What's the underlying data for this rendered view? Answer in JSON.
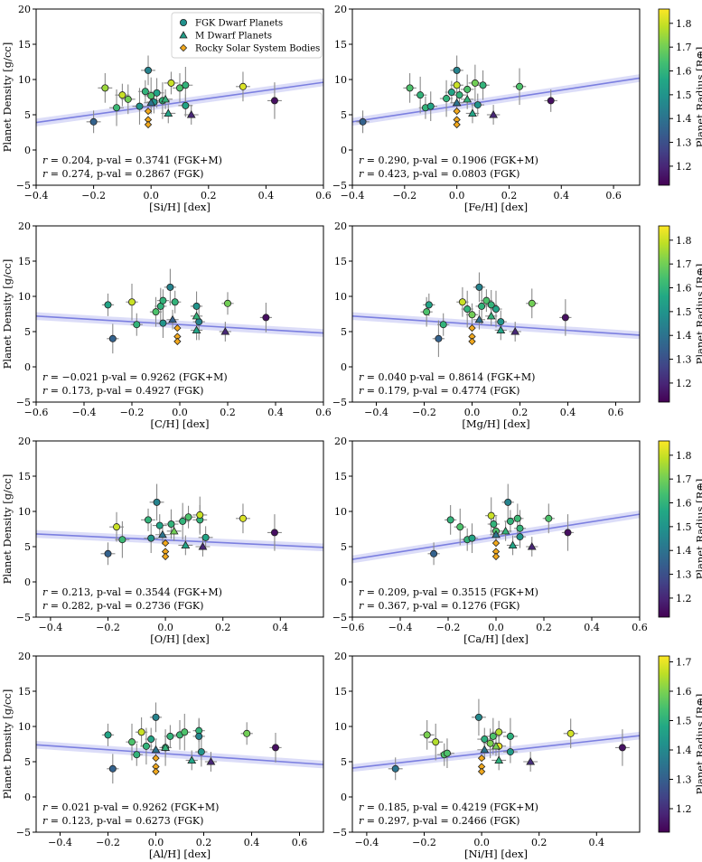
{
  "chart_data": [
    {
      "type": "scatter",
      "xlabel": "[Si/H] [dex]",
      "ylabel": "Planet Density [g/cc]",
      "xlim": [
        -0.4,
        0.6
      ],
      "ylim": [
        -5,
        20
      ],
      "xticks": [
        "−0.4",
        "−0.2",
        "0.0",
        "0.2",
        "0.4",
        "0.6"
      ],
      "yticks": [
        "−5",
        "0",
        "5",
        "10",
        "15",
        "20"
      ],
      "fit_line": [
        [
          -0.4,
          3.9
        ],
        [
          0.6,
          9.6
        ]
      ],
      "annotation": [
        "r = 0.204, p-val = 0.3741 (FGK+M)",
        "r = 0.274, p-val = 0.2867 (FGK)"
      ],
      "fgk": [
        [
          -0.2,
          4.0,
          1.35
        ],
        [
          -0.16,
          8.8,
          1.75
        ],
        [
          -0.12,
          6.0,
          1.62
        ],
        [
          -0.1,
          7.8,
          1.8
        ],
        [
          -0.08,
          7.2,
          1.7
        ],
        [
          -0.04,
          6.2,
          1.5
        ],
        [
          -0.02,
          8.3,
          1.6
        ],
        [
          -0.01,
          11.3,
          1.45
        ],
        [
          0.0,
          7.7,
          1.65
        ],
        [
          0.01,
          6.8,
          1.5
        ],
        [
          0.02,
          8.1,
          1.55
        ],
        [
          0.04,
          7.0,
          1.6
        ],
        [
          0.07,
          9.5,
          1.8
        ],
        [
          0.1,
          8.8,
          1.65
        ],
        [
          0.12,
          9.2,
          1.6
        ],
        [
          0.12,
          6.3,
          1.55
        ],
        [
          0.32,
          9.0,
          1.82
        ],
        [
          0.43,
          7.0,
          1.15
        ]
      ],
      "m": [
        [
          0.0,
          6.7,
          1.4
        ],
        [
          0.05,
          7.2,
          1.6
        ],
        [
          0.06,
          5.2,
          1.55
        ],
        [
          0.14,
          5.0,
          1.2
        ]
      ],
      "rocky": [
        [
          -0.01,
          5.5
        ],
        [
          -0.01,
          4.3
        ],
        [
          -0.01,
          3.6
        ]
      ],
      "colorbar": {
        "label": "Planet Radius [R⊕]",
        "ticks": [
          "1.2",
          "1.3",
          "1.4",
          "1.5",
          "1.6",
          "1.7",
          "1.8"
        ],
        "min": 1.12,
        "max": 1.86
      }
    },
    {
      "type": "scatter",
      "xlabel": "[Fe/H] [dex]",
      "ylabel": "",
      "xlim": [
        -0.4,
        0.7
      ],
      "ylim": [
        -5,
        20
      ],
      "xticks": [
        "−0.4",
        "−0.2",
        "0.0",
        "0.2",
        "0.4",
        "0.6"
      ],
      "yticks": [
        "−5",
        "0",
        "5",
        "10",
        "15",
        "20"
      ],
      "fit_line": [
        [
          -0.4,
          4.0
        ],
        [
          0.7,
          10.2
        ]
      ],
      "annotation": [
        "r = 0.290, p-val = 0.1906 (FGK+M)",
        "r = 0.423, p-val = 0.0803 (FGK)"
      ],
      "fgk": [
        [
          -0.36,
          4.0,
          1.35
        ],
        [
          -0.18,
          8.8,
          1.65
        ],
        [
          -0.14,
          7.8,
          1.6
        ],
        [
          -0.12,
          6.0,
          1.6
        ],
        [
          -0.1,
          6.2,
          1.55
        ],
        [
          -0.04,
          7.3,
          1.6
        ],
        [
          -0.02,
          8.2,
          1.55
        ],
        [
          0.0,
          11.3,
          1.45
        ],
        [
          0.0,
          9.2,
          1.8
        ],
        [
          0.01,
          7.8,
          1.6
        ],
        [
          0.04,
          8.6,
          1.65
        ],
        [
          0.07,
          9.5,
          1.7
        ],
        [
          0.08,
          6.4,
          1.5
        ],
        [
          0.1,
          9.2,
          1.6
        ],
        [
          0.24,
          9.0,
          1.65
        ],
        [
          0.36,
          7.0,
          1.15
        ]
      ],
      "m": [
        [
          0.0,
          6.7,
          1.4
        ],
        [
          0.04,
          7.2,
          1.6
        ],
        [
          0.06,
          5.2,
          1.55
        ],
        [
          0.14,
          5.0,
          1.2
        ]
      ],
      "rocky": [
        [
          0.0,
          5.5
        ],
        [
          0.0,
          4.3
        ],
        [
          0.0,
          3.6
        ]
      ],
      "colorbar": {
        "label": "Planet Radius [R⊕]",
        "ticks": [
          "1.2",
          "1.3",
          "1.4",
          "1.5",
          "1.6",
          "1.7",
          "1.8"
        ],
        "min": 1.12,
        "max": 1.86
      }
    },
    {
      "type": "scatter",
      "xlabel": "[C/H] [dex]",
      "ylabel": "Planet Density [g/cc]",
      "xlim": [
        -0.6,
        0.6
      ],
      "ylim": [
        -5,
        20
      ],
      "xticks": [
        "−0.6",
        "−0.4",
        "−0.2",
        "0.0",
        "0.2",
        "0.4",
        "0.6"
      ],
      "yticks": [
        "−5",
        "0",
        "5",
        "10",
        "15",
        "20"
      ],
      "fit_line": [
        [
          -0.6,
          7.2
        ],
        [
          0.6,
          4.8
        ]
      ],
      "annotation": [
        "r = −0.021 p-val = 0.9262 (FGK+M)",
        "r = 0.173, p-val = 0.4927 (FGK)"
      ],
      "fgk": [
        [
          -0.3,
          8.8,
          1.55
        ],
        [
          -0.28,
          4.0,
          1.35
        ],
        [
          -0.2,
          9.2,
          1.8
        ],
        [
          -0.18,
          6.0,
          1.6
        ],
        [
          -0.1,
          7.8,
          1.65
        ],
        [
          -0.08,
          8.6,
          1.6
        ],
        [
          -0.07,
          9.4,
          1.6
        ],
        [
          -0.07,
          6.2,
          1.5
        ],
        [
          -0.04,
          11.3,
          1.45
        ],
        [
          -0.02,
          9.2,
          1.6
        ],
        [
          0.07,
          8.6,
          1.5
        ],
        [
          0.08,
          6.4,
          1.45
        ],
        [
          0.2,
          9.0,
          1.7
        ],
        [
          0.36,
          7.0,
          1.15
        ]
      ],
      "m": [
        [
          -0.03,
          6.7,
          1.35
        ],
        [
          0.07,
          7.2,
          1.6
        ],
        [
          0.07,
          5.2,
          1.55
        ],
        [
          0.19,
          5.0,
          1.2
        ]
      ],
      "rocky": [
        [
          -0.01,
          5.5
        ],
        [
          -0.01,
          4.3
        ],
        [
          -0.01,
          3.6
        ]
      ],
      "colorbar": {
        "label": "Planet Radius [R⊕]",
        "ticks": [
          "1.2",
          "1.3",
          "1.4",
          "1.5",
          "1.6",
          "1.7",
          "1.8"
        ],
        "min": 1.12,
        "max": 1.86
      }
    },
    {
      "type": "scatter",
      "xlabel": "[Mg/H] [dex]",
      "ylabel": "",
      "xlim": [
        -0.5,
        0.7
      ],
      "ylim": [
        -5,
        20
      ],
      "xticks": [
        "−0.4",
        "−0.2",
        "0.0",
        "0.2",
        "0.4",
        "0.6"
      ],
      "yticks": [
        "−5",
        "0",
        "5",
        "10",
        "15",
        "20"
      ],
      "fit_line": [
        [
          -0.5,
          7.2
        ],
        [
          0.7,
          4.5
        ]
      ],
      "annotation": [
        "r = 0.040 p-val = 0.8614 (FGK+M)",
        "r = 0.179, p-val = 0.4774 (FGK)"
      ],
      "fgk": [
        [
          -0.18,
          8.8,
          1.55
        ],
        [
          -0.19,
          7.8,
          1.65
        ],
        [
          -0.14,
          4.0,
          1.35
        ],
        [
          -0.12,
          6.0,
          1.6
        ],
        [
          -0.04,
          9.2,
          1.8
        ],
        [
          -0.02,
          8.2,
          1.6
        ],
        [
          0.0,
          7.4,
          1.7
        ],
        [
          0.03,
          11.3,
          1.45
        ],
        [
          0.04,
          8.6,
          1.6
        ],
        [
          0.06,
          9.4,
          1.65
        ],
        [
          0.08,
          8.8,
          1.6
        ],
        [
          0.1,
          8.2,
          1.55
        ],
        [
          0.12,
          6.4,
          1.5
        ],
        [
          0.25,
          9.0,
          1.7
        ],
        [
          0.39,
          7.0,
          1.15
        ]
      ],
      "m": [
        [
          0.03,
          6.7,
          1.4
        ],
        [
          0.08,
          7.2,
          1.6
        ],
        [
          0.12,
          5.2,
          1.55
        ],
        [
          0.18,
          5.0,
          1.2
        ]
      ],
      "rocky": [
        [
          0.0,
          5.5
        ],
        [
          0.0,
          4.3
        ],
        [
          0.0,
          3.6
        ]
      ],
      "colorbar": {
        "label": "Planet Radius [R⊕]",
        "ticks": [
          "1.2",
          "1.3",
          "1.4",
          "1.5",
          "1.6",
          "1.7",
          "1.8"
        ],
        "min": 1.12,
        "max": 1.86
      }
    },
    {
      "type": "scatter",
      "xlabel": "[O/H] [dex]",
      "ylabel": "Planet Density [g/cc]",
      "xlim": [
        -0.45,
        0.55
      ],
      "ylim": [
        -5,
        20
      ],
      "xticks": [
        "−0.4",
        "−0.2",
        "0.0",
        "0.2",
        "0.4"
      ],
      "yticks": [
        "−5",
        "0",
        "5",
        "10",
        "15",
        "20"
      ],
      "fit_line": [
        [
          -0.45,
          6.8
        ],
        [
          0.55,
          4.9
        ]
      ],
      "annotation": [
        "r = 0.213, p-val = 0.3544 (FGK+M)",
        "r = 0.282, p-val = 0.2736 (FGK)"
      ],
      "fgk": [
        [
          -0.2,
          4.0,
          1.35
        ],
        [
          -0.17,
          7.8,
          1.8
        ],
        [
          -0.15,
          6.0,
          1.62
        ],
        [
          -0.06,
          8.8,
          1.6
        ],
        [
          -0.05,
          6.2,
          1.5
        ],
        [
          -0.03,
          11.3,
          1.45
        ],
        [
          -0.02,
          8.0,
          1.55
        ],
        [
          0.02,
          8.2,
          1.6
        ],
        [
          0.06,
          8.6,
          1.6
        ],
        [
          0.08,
          9.2,
          1.65
        ],
        [
          0.12,
          8.8,
          1.6
        ],
        [
          0.12,
          9.5,
          1.8
        ],
        [
          0.14,
          6.3,
          1.55
        ],
        [
          0.27,
          9.0,
          1.82
        ],
        [
          0.38,
          7.0,
          1.15
        ]
      ],
      "m": [
        [
          -0.01,
          6.7,
          1.4
        ],
        [
          0.03,
          7.2,
          1.7
        ],
        [
          0.07,
          5.2,
          1.55
        ],
        [
          0.13,
          5.0,
          1.2
        ]
      ],
      "rocky": [
        [
          0.0,
          5.5
        ],
        [
          0.0,
          4.3
        ],
        [
          0.0,
          3.6
        ]
      ],
      "colorbar": {
        "label": "Planet Radius [R⊕]",
        "ticks": [
          "1.2",
          "1.3",
          "1.4",
          "1.5",
          "1.6",
          "1.7",
          "1.8"
        ],
        "min": 1.12,
        "max": 1.86
      }
    },
    {
      "type": "scatter",
      "xlabel": "[Ca/H] [dex]",
      "ylabel": "",
      "xlim": [
        -0.6,
        0.6
      ],
      "ylim": [
        -5,
        20
      ],
      "xticks": [
        "−0.6",
        "−0.4",
        "−0.2",
        "0.0",
        "0.2",
        "0.4",
        "0.6"
      ],
      "yticks": [
        "−5",
        "0",
        "5",
        "10",
        "15",
        "20"
      ],
      "fit_line": [
        [
          -0.6,
          3.2
        ],
        [
          0.6,
          9.6
        ]
      ],
      "annotation": [
        "r = 0.209, p-val = 0.3515 (FGK+M)",
        "r = 0.367, p-val = 0.1276 (FGK)"
      ],
      "fgk": [
        [
          -0.26,
          4.0,
          1.35
        ],
        [
          -0.19,
          8.8,
          1.6
        ],
        [
          -0.15,
          7.8,
          1.65
        ],
        [
          -0.12,
          6.0,
          1.6
        ],
        [
          -0.1,
          6.2,
          1.55
        ],
        [
          -0.02,
          9.4,
          1.8
        ],
        [
          -0.01,
          8.2,
          1.6
        ],
        [
          0.0,
          7.2,
          1.65
        ],
        [
          0.05,
          11.3,
          1.45
        ],
        [
          0.06,
          8.6,
          1.6
        ],
        [
          0.09,
          9.0,
          1.62
        ],
        [
          0.1,
          7.6,
          1.6
        ],
        [
          0.1,
          6.4,
          1.5
        ],
        [
          0.22,
          9.0,
          1.65
        ],
        [
          0.3,
          7.0,
          1.15
        ]
      ],
      "m": [
        [
          0.0,
          6.7,
          1.4
        ],
        [
          0.04,
          7.2,
          1.6
        ],
        [
          0.07,
          5.2,
          1.55
        ],
        [
          0.15,
          5.0,
          1.2
        ]
      ],
      "rocky": [
        [
          0.0,
          5.5
        ],
        [
          0.0,
          4.3
        ],
        [
          0.0,
          3.6
        ]
      ],
      "colorbar": {
        "label": "Planet Radius [R⊕]",
        "ticks": [
          "1.2",
          "1.3",
          "1.4",
          "1.5",
          "1.6",
          "1.7",
          "1.8"
        ],
        "min": 1.12,
        "max": 1.86
      }
    },
    {
      "type": "scatter",
      "xlabel": "[Al/H] [dex]",
      "ylabel": "Planet Density [g/cc]",
      "xlim": [
        -0.5,
        0.7
      ],
      "ylim": [
        -5,
        20
      ],
      "xticks": [
        "−0.4",
        "−0.2",
        "0.0",
        "0.2",
        "0.4",
        "0.6"
      ],
      "yticks": [
        "−5",
        "0",
        "5",
        "10",
        "15",
        "20"
      ],
      "fit_line": [
        [
          -0.5,
          7.4
        ],
        [
          0.7,
          4.6
        ]
      ],
      "annotation": [
        "r = 0.021 p-val = 0.9262 (FGK+M)",
        "r = 0.123, p-val = 0.6273 (FGK)"
      ],
      "fgk": [
        [
          -0.2,
          8.8,
          1.55
        ],
        [
          -0.18,
          4.0,
          1.35
        ],
        [
          -0.1,
          7.8,
          1.65
        ],
        [
          -0.08,
          6.0,
          1.6
        ],
        [
          -0.06,
          9.2,
          1.8
        ],
        [
          -0.04,
          7.2,
          1.6
        ],
        [
          -0.02,
          8.2,
          1.55
        ],
        [
          0.0,
          11.3,
          1.45
        ],
        [
          0.04,
          7.0,
          1.6
        ],
        [
          0.06,
          8.6,
          1.6
        ],
        [
          0.1,
          8.8,
          1.62
        ],
        [
          0.12,
          9.2,
          1.65
        ],
        [
          0.18,
          9.4,
          1.6
        ],
        [
          0.19,
          6.4,
          1.5
        ],
        [
          0.18,
          8.6,
          1.45
        ],
        [
          0.38,
          9.0,
          1.7
        ],
        [
          0.5,
          7.0,
          1.15
        ]
      ],
      "m": [
        [
          0.0,
          6.7,
          1.4
        ],
        [
          0.04,
          7.0,
          1.6
        ],
        [
          0.15,
          5.2,
          1.55
        ],
        [
          0.23,
          5.0,
          1.2
        ]
      ],
      "rocky": [
        [
          0.0,
          5.5
        ],
        [
          0.0,
          4.3
        ],
        [
          0.0,
          3.6
        ]
      ],
      "colorbar": {
        "label": "Planet Radius [R⊕]",
        "ticks": [
          "1.2",
          "1.3",
          "1.4",
          "1.5",
          "1.6",
          "1.7",
          "1.8"
        ],
        "min": 1.12,
        "max": 1.86
      }
    },
    {
      "type": "scatter",
      "xlabel": "[Ni/H] [dex]",
      "ylabel": "",
      "xlim": [
        -0.45,
        0.55
      ],
      "ylim": [
        -5,
        20
      ],
      "xticks": [
        "−0.4",
        "−0.2",
        "0.0",
        "0.2",
        "0.4"
      ],
      "yticks": [
        "−5",
        "0",
        "5",
        "10",
        "15",
        "20"
      ],
      "fit_line": [
        [
          -0.45,
          4.1
        ],
        [
          0.55,
          8.7
        ]
      ],
      "annotation": [
        "r = 0.185, p-val = 0.4219 (FGK+M)",
        "r = 0.297, p-val = 0.2466 (FGK)"
      ],
      "fgk": [
        [
          -0.3,
          4.0,
          1.35
        ],
        [
          -0.19,
          8.8,
          1.6
        ],
        [
          -0.16,
          7.8,
          1.65
        ],
        [
          -0.13,
          6.0,
          1.55
        ],
        [
          -0.12,
          6.2,
          1.55
        ],
        [
          -0.01,
          11.3,
          1.4
        ],
        [
          0.01,
          8.2,
          1.5
        ],
        [
          0.03,
          7.6,
          1.6
        ],
        [
          0.04,
          8.6,
          1.55
        ],
        [
          0.06,
          9.2,
          1.65
        ],
        [
          0.06,
          7.2,
          1.7
        ],
        [
          0.1,
          8.6,
          1.5
        ],
        [
          0.1,
          6.4,
          1.45
        ],
        [
          0.31,
          9.0,
          1.68
        ],
        [
          0.49,
          7.0,
          1.15
        ]
      ],
      "m": [
        [
          0.01,
          6.7,
          1.35
        ],
        [
          0.05,
          7.2,
          1.6
        ],
        [
          0.06,
          5.2,
          1.5
        ],
        [
          0.17,
          5.0,
          1.2
        ]
      ],
      "rocky": [
        [
          0.0,
          5.5
        ],
        [
          0.0,
          4.3
        ],
        [
          0.0,
          3.6
        ]
      ],
      "colorbar": {
        "label": "Planet Radius [R⊕]",
        "ticks": [
          "1.2",
          "1.3",
          "1.4",
          "1.5",
          "1.6",
          "1.7"
        ],
        "min": 1.12,
        "max": 1.72
      }
    }
  ],
  "legend": {
    "fgk": "FGK Dwarf Planets",
    "m": "M Dwarf Planets",
    "rocky": "Rocky Solar System Bodies"
  },
  "colors": {
    "fit": "#7b7fe0",
    "band": "#d3d5f6",
    "rocky": "#f2a91d"
  }
}
